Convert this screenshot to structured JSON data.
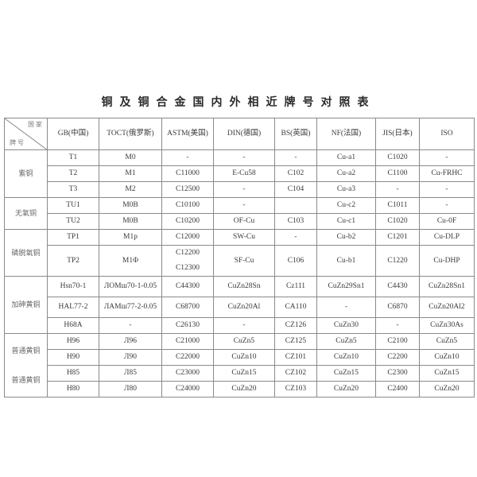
{
  "title": "铜及铜合金国内外相近牌号对照表",
  "header": {
    "corner_top": "国 家",
    "corner_bottom": "牌 号",
    "columns": [
      "GB(中国)",
      "TOCT(俄罗斯)",
      "ASTM(美国)",
      "DIN(德国)",
      "BS(英国)",
      "NF(法国)",
      "JIS(日本)",
      "ISO"
    ]
  },
  "groups": [
    {
      "labels": [
        "紫铜"
      ],
      "rows": [
        {
          "cells": [
            "T1",
            "M0",
            "-",
            "-",
            "-",
            "Cu-a1",
            "C1020",
            "-"
          ]
        },
        {
          "cells": [
            "T2",
            "M1",
            "C11000",
            "E-Cu58",
            "C102",
            "Cu-a2",
            "C1100",
            "Cu-FRHC"
          ]
        },
        {
          "cells": [
            "T3",
            "M2",
            "C12500",
            "-",
            "C104",
            "Cu-a3",
            "-",
            "-"
          ]
        }
      ]
    },
    {
      "labels": [
        "无氧铜"
      ],
      "rows": [
        {
          "cells": [
            "TU1",
            "M0B",
            "C10100",
            "-",
            "",
            "Cu-c2",
            "C1011",
            "-"
          ]
        },
        {
          "cells": [
            "TU2",
            "M0B",
            "C10200",
            "OF-Cu",
            "C103",
            "Cu-c1",
            "C1020",
            "Cu-0F"
          ]
        }
      ]
    },
    {
      "labels": [
        "磷脱氧铜"
      ],
      "rows": [
        {
          "cells": [
            "TP1",
            "M1p",
            "C12000",
            "SW-Cu",
            "-",
            "Cu-b2",
            "C1201",
            "Cu-DLP"
          ]
        },
        {
          "cells": [
            "TP2",
            "M1Φ",
            [
              "C12200",
              "C12300"
            ],
            "SF-Cu",
            "C106",
            "Cu-b1",
            "C1220",
            "Cu-DHP"
          ],
          "tall": true
        }
      ]
    },
    {
      "labels": [
        "加砷黄铜"
      ],
      "rows": [
        {
          "cells": [
            "Hsn70-1",
            "ЛОМш70-1-0.05",
            "C44300",
            "CuZn28Sn",
            "Cz111",
            "CuZn29Sn1",
            "C4430",
            "CuZn28Sn1"
          ],
          "mid": true
        },
        {
          "cells": [
            "HAL77-2",
            "ЛАМш77-2-0.05",
            "C68700",
            "CuZn20Al",
            "CA110",
            "-",
            "C6870",
            "CuZn20Al2"
          ],
          "mid": true
        },
        {
          "cells": [
            "H68A",
            "-",
            "C26130",
            "-",
            "CZ126",
            "CuZn30",
            "-",
            "CuZn30As"
          ]
        }
      ]
    },
    {
      "labels": [
        "普通黄铜",
        "普通黄铜"
      ],
      "rows": [
        {
          "cells": [
            "H96",
            "Л96",
            "C21000",
            "CuZn5",
            "CZ125",
            "CuZn5",
            "C2100",
            "CuZn5"
          ]
        },
        {
          "cells": [
            "H90",
            "Л90",
            "C22000",
            "CuZn10",
            "CZ101",
            "CuZn10",
            "C2200",
            "CuZn10"
          ]
        },
        {
          "cells": [
            "H85",
            "Л85",
            "C23000",
            "CuZn15",
            "CZ102",
            "CuZn15",
            "C2300",
            "CuZn15"
          ]
        },
        {
          "cells": [
            "H80",
            "Л80",
            "C24000",
            "CuZn20",
            "CZ103",
            "CuZn20",
            "C2400",
            "CuZn20"
          ]
        }
      ]
    }
  ]
}
